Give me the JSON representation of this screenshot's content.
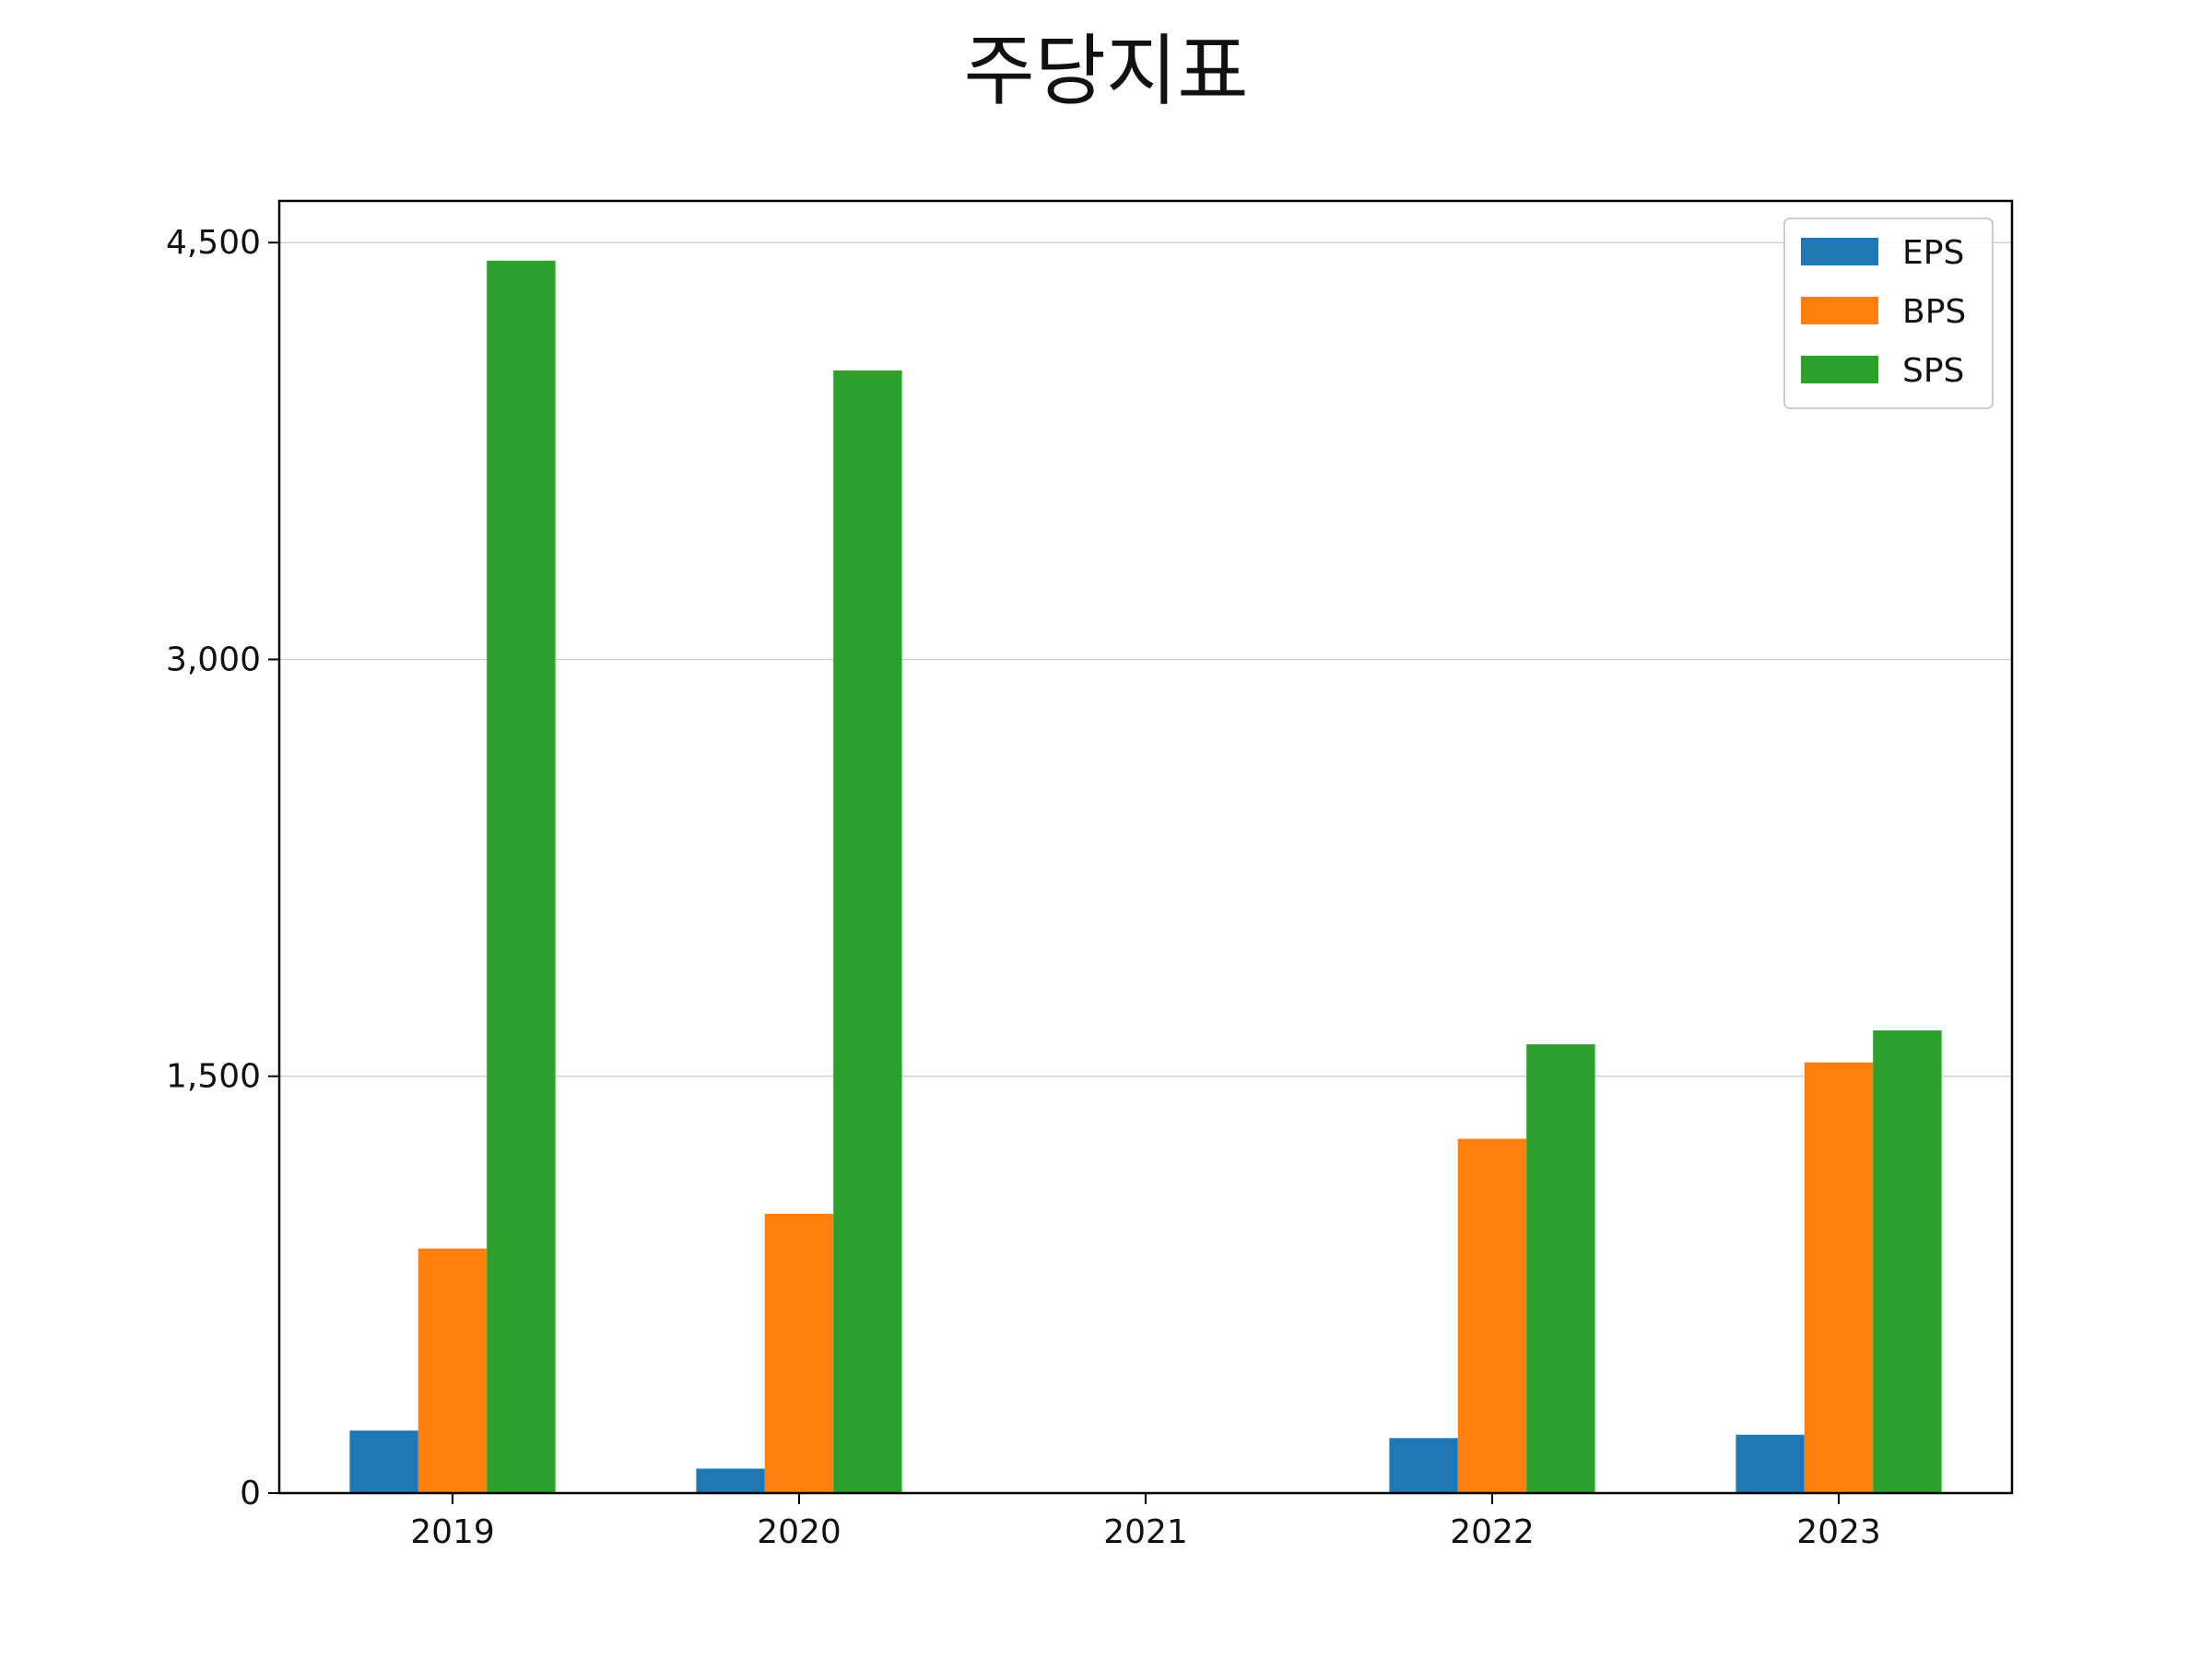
{
  "chart_data": {
    "type": "bar",
    "title": "주당지표",
    "xlabel": "",
    "ylabel": "",
    "categories": [
      "2019",
      "2020",
      "2021",
      "2022",
      "2023"
    ],
    "series": [
      {
        "name": "EPS",
        "color": "#1f77b4",
        "values": [
          225,
          88,
          0,
          198,
          210
        ]
      },
      {
        "name": "BPS",
        "color": "#ff7f0e",
        "values": [
          880,
          1005,
          0,
          1275,
          1550
        ]
      },
      {
        "name": "SPS",
        "color": "#2ca02c",
        "values": [
          4435,
          4040,
          0,
          1615,
          1665
        ]
      }
    ],
    "ylim": [
      0,
      4650
    ],
    "yticks": [
      0,
      1500,
      3000,
      4500
    ],
    "ytick_labels": [
      "0",
      "1,500",
      "3,000",
      "4,500"
    ],
    "grid": "y",
    "legend_position": "top-right"
  }
}
